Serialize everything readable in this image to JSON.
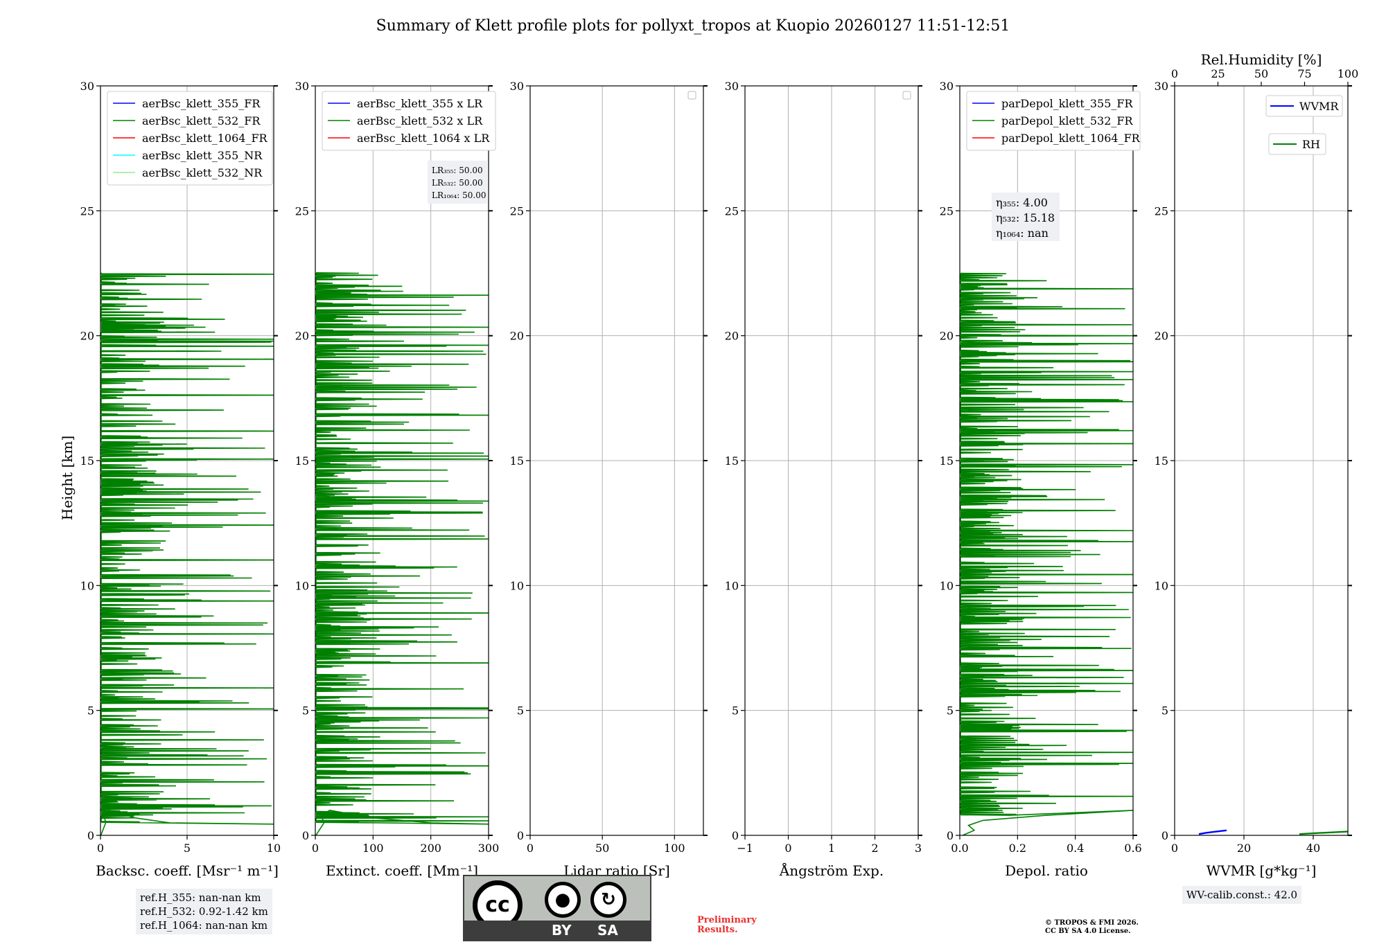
{
  "title": "Summary of Klett profile plots for pollyxt_tropos at Kuopio 20260127 11:51-12:51",
  "colors": {
    "blue": "#0000ff",
    "green": "#008000",
    "red": "#ff0000",
    "cyan": "#00ffff",
    "lightgreen": "#90ee90",
    "grid": "#b0b0b0",
    "box": "#eef0f4"
  },
  "chart_data": [
    {
      "type": "line",
      "panel": "backscatter",
      "xlabel": "Backsc. coeff. [Msr⁻¹ m⁻¹]",
      "ylabel": "Height [km]",
      "xlim": [
        0,
        10
      ],
      "ylim": [
        0,
        30
      ],
      "xticks": [
        0,
        5,
        10
      ],
      "xtick_labels": [
        "0",
        "5",
        "10"
      ],
      "yticks": [
        0,
        5,
        10,
        15,
        20,
        25,
        30
      ],
      "ytick_labels": [
        "0",
        "5",
        "10",
        "15",
        "20",
        "25",
        "30"
      ],
      "legend": [
        "aerBsc_klett_355_FR",
        "aerBsc_klett_532_FR",
        "aerBsc_klett_1064_FR",
        "aerBsc_klett_355_NR",
        "aerBsc_klett_532_NR"
      ],
      "legend_colors": [
        "blue",
        "green",
        "red",
        "cyan",
        "lightgreen"
      ],
      "legend_placement": "top-left",
      "series": [
        {
          "name": "aerBsc_klett_532_FR",
          "color": "green",
          "base": [
            [
              0.02,
              0
            ],
            [
              0.3,
              0.5
            ],
            [
              0.2,
              0.8
            ],
            [
              0.5,
              1.0
            ],
            [
              2.0,
              0.7
            ],
            [
              4.0,
              0.5
            ],
            [
              10,
              0.45
            ]
          ],
          "spike_max": 10,
          "height_range": [
            0.5,
            22.5
          ]
        }
      ]
    },
    {
      "type": "line",
      "panel": "extinction",
      "xlabel": "Extinct. coeff. [Mm⁻¹]",
      "xlim": [
        0,
        300
      ],
      "ylim": [
        0,
        30
      ],
      "xticks": [
        0,
        100,
        200,
        300
      ],
      "xtick_labels": [
        "0",
        "100",
        "200",
        "300"
      ],
      "yticks": [
        0,
        5,
        10,
        15,
        20,
        25,
        30
      ],
      "ytick_labels": [
        "0",
        "5",
        "10",
        "15",
        "20",
        "25",
        "30"
      ],
      "legend": [
        "aerBsc_klett_355 x LR",
        "aerBsc_klett_532 x LR",
        "aerBsc_klett_1064 x LR"
      ],
      "legend_colors": [
        "blue",
        "green",
        "red"
      ],
      "legend_placement": "top-left",
      "lr_box": [
        "LR₃₅₅: 50.00",
        "LR₅₃₂: 50.00",
        "LR₁₀₆₄: 50.00"
      ],
      "series": [
        {
          "name": "aerBsc_klett_532 x LR",
          "color": "green",
          "base": [
            [
              1,
              0
            ],
            [
              15,
              0.5
            ],
            [
              10,
              0.8
            ],
            [
              25,
              1.0
            ],
            [
              100,
              0.7
            ],
            [
              200,
              0.5
            ],
            [
              300,
              0.45
            ]
          ],
          "spike_max": 300,
          "height_range": [
            0.5,
            22.5
          ]
        }
      ]
    },
    {
      "type": "line",
      "panel": "lidar_ratio",
      "xlabel": "Lidar ratio [Sr]",
      "xlim": [
        0,
        120
      ],
      "ylim": [
        0,
        30
      ],
      "xticks": [
        0,
        50,
        100
      ],
      "xtick_labels": [
        "0",
        "50",
        "100"
      ],
      "yticks": [
        0,
        5,
        10,
        15,
        20,
        25,
        30
      ],
      "ytick_labels": [
        "0",
        "5",
        "10",
        "15",
        "20",
        "25",
        "30"
      ],
      "legend": [],
      "legend_placement": "top-right",
      "series": []
    },
    {
      "type": "line",
      "panel": "angstrom",
      "xlabel": "Ångström Exp.",
      "xlim": [
        -1,
        3
      ],
      "ylim": [
        0,
        30
      ],
      "xticks": [
        -1,
        0,
        1,
        2,
        3
      ],
      "xtick_labels": [
        "−1",
        "0",
        "1",
        "2",
        "3"
      ],
      "yticks": [
        0,
        5,
        10,
        15,
        20,
        25,
        30
      ],
      "ytick_labels": [
        "0",
        "5",
        "10",
        "15",
        "20",
        "25",
        "30"
      ],
      "legend": [],
      "legend_placement": "top-right",
      "series": []
    },
    {
      "type": "line",
      "panel": "depol",
      "xlabel": "Depol. ratio",
      "xlim": [
        0,
        0.6
      ],
      "ylim": [
        0,
        30
      ],
      "xticks": [
        0,
        0.2,
        0.4,
        0.6
      ],
      "xtick_labels": [
        "0.0",
        "0.2",
        "0.4",
        "0.6"
      ],
      "yticks": [
        0,
        5,
        10,
        15,
        20,
        25,
        30
      ],
      "ytick_labels": [
        "0",
        "5",
        "10",
        "15",
        "20",
        "25",
        "30"
      ],
      "legend": [
        "parDepol_klett_355_FR",
        "parDepol_klett_532_FR",
        "parDepol_klett_1064_FR"
      ],
      "legend_colors": [
        "blue",
        "green",
        "red"
      ],
      "legend_placement": "top-left",
      "eta_box": [
        "η₃₅₅: 4.00",
        "η₅₃₂: 15.18",
        "η₁₀₆₄: nan"
      ],
      "series": [
        {
          "name": "parDepol_klett_532_FR",
          "color": "green",
          "base": [
            [
              0.01,
              0
            ],
            [
              0.05,
              0.2
            ],
            [
              0.03,
              0.4
            ],
            [
              0.08,
              0.6
            ],
            [
              0.3,
              0.8
            ],
            [
              0.6,
              1.0
            ]
          ],
          "spike_max": 0.6,
          "height_range": [
            0.8,
            22.5
          ]
        }
      ]
    },
    {
      "type": "line",
      "panel": "wvmr",
      "xlabel": "WVMR [g*kg⁻¹]",
      "top_xlabel": "Rel.Humidity [%]",
      "xlim": [
        0,
        50
      ],
      "ylim": [
        0,
        30
      ],
      "xticks": [
        0,
        20,
        40
      ],
      "xtick_labels": [
        "0",
        "20",
        "40"
      ],
      "top_xlim": [
        0,
        100
      ],
      "top_xticks": [
        0,
        25,
        50,
        75,
        100
      ],
      "top_xtick_labels": [
        "0",
        "25",
        "50",
        "75",
        "100"
      ],
      "yticks": [
        0,
        5,
        10,
        15,
        20,
        25,
        30
      ],
      "ytick_labels": [
        "0",
        "5",
        "10",
        "15",
        "20",
        "25",
        "30"
      ],
      "legend": [
        "WVMR",
        "RH"
      ],
      "legend_colors": [
        "blue",
        "green"
      ],
      "legend_placement": "top-right",
      "series": [
        {
          "name": "WVMR",
          "color": "blue",
          "points": [
            [
              7,
              0.05
            ],
            [
              9,
              0.1
            ],
            [
              12,
              0.15
            ],
            [
              15,
              0.2
            ]
          ]
        },
        {
          "name": "RH",
          "color": "green",
          "points": [
            [
              72,
              0.05
            ],
            [
              85,
              0.1
            ],
            [
              100,
              0.15
            ]
          ]
        }
      ]
    }
  ],
  "notes": {
    "ref_lines": [
      "ref.H_355: nan-nan km",
      "ref.H_532: 0.92-1.42 km",
      "ref.H_1064: nan-nan km"
    ],
    "wv_calib": "WV-calib.const.: 42.0",
    "preliminary": "Preliminary\nResults.",
    "copyright": "© TROPOS & FMI 2026.\nCC BY SA 4.0 License."
  },
  "cc_badge": {
    "cc": "cc",
    "by": "BY",
    "sa": "SA"
  }
}
